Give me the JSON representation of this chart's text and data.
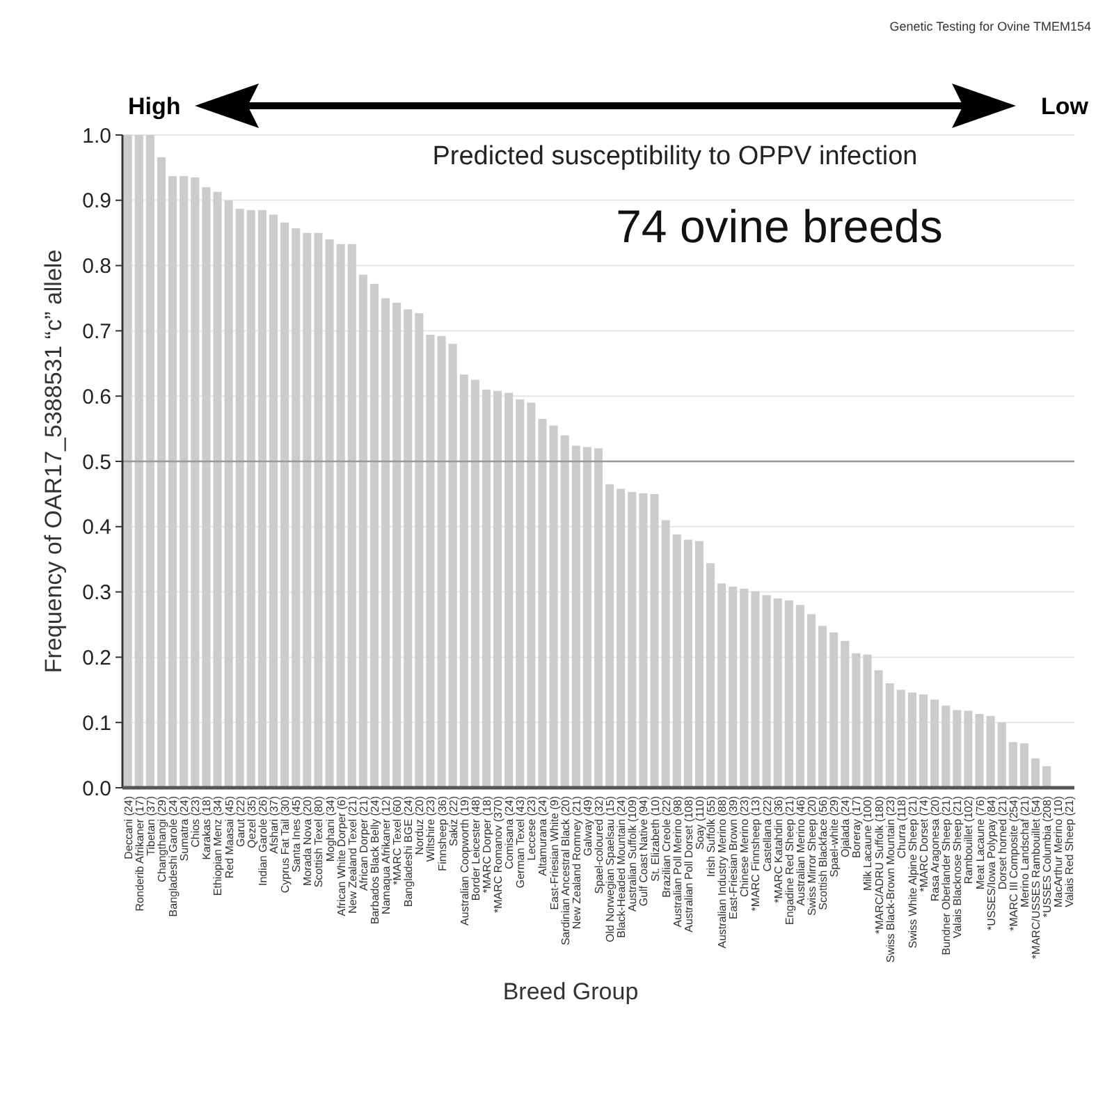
{
  "chart_data": {
    "type": "bar",
    "xlabel": "Breed Group",
    "ylabel": "Frequency of OAR17_5388531 “c” allele",
    "annotations": [
      "Genetic Testing for Ovine TMEM154",
      "High",
      "Low",
      "Predicted susceptibility to OPPV infection",
      "74 ovine breeds"
    ],
    "categories": [
      "Deccani (24)",
      "Ronderib Afrikaner (17)",
      "Tibetan (37)",
      "Changthangi (29)",
      "Bangladeshi Garole (24)",
      "Sumatra (24)",
      "Chios (23)",
      "Karakas (18)",
      "Ethiopian Menz (34)",
      "Red Maasai (45)",
      "Garut (22)",
      "Qezel (35)",
      "Indian Garole (26)",
      "Afshari (37)",
      "Cyprus Fat Tail (30)",
      "Santa Ines (45)",
      "Morada Nova (20)",
      "Scottish Texel (80)",
      "Moghani (34)",
      "African White Dorper (6)",
      "New Zealand Texel (21)",
      "African Dorper (21)",
      "Barbados Black Belly (24)",
      "Namaqua Afrikaner (12)",
      "*MARC Texel (60)",
      "Bangladeshi BGE (24)",
      "Norduz (20)",
      "Wiltshire (23)",
      "Finnsheep (36)",
      "Sakiz (22)",
      "Australian Coopworth (19)",
      "Border Leicester (48)",
      "*MARC Dorper (18)",
      "*MARC Romanov (370)",
      "Comisana (24)",
      "German Texel (43)",
      "Leccese (23)",
      "Altamurana (24)",
      "East-Friesian White (9)",
      "Sardinian Ancestral Black (20)",
      "New Zealand Romney (21)",
      "Galway (49)",
      "Spael-coloured (32)",
      "Old Norwegian Spaelsau (15)",
      "Black-Headed Mountain (24)",
      "Australian Suffolk (109)",
      "Gulf Coast Native (94)",
      "St. Elizabeth (10)",
      "Brazilian Creole (22)",
      "Australian Poll Merino (98)",
      "Australian Poll Dorset (108)",
      "Soay (110)",
      "Irish Suffolk (55)",
      "Australian Industry Merino (88)",
      "East-Friesian Brown (39)",
      "Chinese Merino (23)",
      "*MARC Finnsheep (13)",
      "Castellana (22)",
      "*MARC Katahdin (36)",
      "Engadine Red Sheep (21)",
      "Australian Merino (46)",
      "Swiss Mirror Sheep (20)",
      "Scottish Blackface (56)",
      "Spael-white (29)",
      "Ojalada (24)",
      "Boreray (17)",
      "Milk Lacaune (100)",
      "*MARC/ADRU Suffolk (180)",
      "Swiss Black-Brown Mountain (23)",
      "Churra (118)",
      "Swiss White Alpine Sheep (21)",
      "*MARC Dorset (74)",
      "Rasa Aragonesa (20)",
      "Bundner Oberlander Sheep (21)",
      "Valais Blacknose Sheep (21)",
      "Rambouillet (102)",
      "Meat Lacaune (76)",
      "*USSES/Iowa Polypay (84)",
      "Dorset horned (21)",
      "*MARC III Composite (254)",
      "Merino Landschaf (21)",
      "*MARC/USSES Rambouillet (54)",
      "*USSES Columbia (208)",
      "MacArthur Merino (10)",
      "Valais Red Sheep (21)"
    ],
    "values": [
      1.0,
      1.0,
      1.0,
      0.966,
      0.937,
      0.937,
      0.935,
      0.92,
      0.913,
      0.9,
      0.887,
      0.885,
      0.885,
      0.878,
      0.866,
      0.857,
      0.85,
      0.85,
      0.84,
      0.833,
      0.833,
      0.786,
      0.772,
      0.75,
      0.743,
      0.733,
      0.727,
      0.694,
      0.692,
      0.68,
      0.633,
      0.625,
      0.61,
      0.608,
      0.605,
      0.595,
      0.59,
      0.565,
      0.555,
      0.54,
      0.524,
      0.522,
      0.52,
      0.465,
      0.458,
      0.453,
      0.451,
      0.45,
      0.41,
      0.388,
      0.38,
      0.378,
      0.344,
      0.313,
      0.308,
      0.305,
      0.301,
      0.295,
      0.29,
      0.287,
      0.28,
      0.266,
      0.248,
      0.238,
      0.225,
      0.206,
      0.204,
      0.18,
      0.16,
      0.15,
      0.146,
      0.143,
      0.135,
      0.126,
      0.119,
      0.118,
      0.113,
      0.11,
      0.1,
      0.07,
      0.068,
      0.045,
      0.033,
      0,
      0
    ],
    "color": "#cccccc",
    "ylim": [
      0,
      1
    ],
    "yticks": [
      {
        "value": 0,
        "label": "0.0"
      },
      {
        "value": 0.1,
        "label": "0.1"
      },
      {
        "value": 0.2,
        "label": "0.2"
      },
      {
        "value": 0.3,
        "label": "0.3"
      },
      {
        "value": 0.4,
        "label": "0.4"
      },
      {
        "value": 0.5,
        "label": "0.5"
      },
      {
        "value": 0.6,
        "label": "0.6"
      },
      {
        "value": 0.7,
        "label": "0.7"
      },
      {
        "value": 0.8,
        "label": "0.8"
      },
      {
        "value": 0.9,
        "label": "0.9"
      },
      {
        "value": 1,
        "label": "1.0"
      }
    ],
    "grid": "y",
    "ref_lines": [
      {
        "axis": "y",
        "value": 0.5,
        "color": "#999999"
      }
    ]
  }
}
